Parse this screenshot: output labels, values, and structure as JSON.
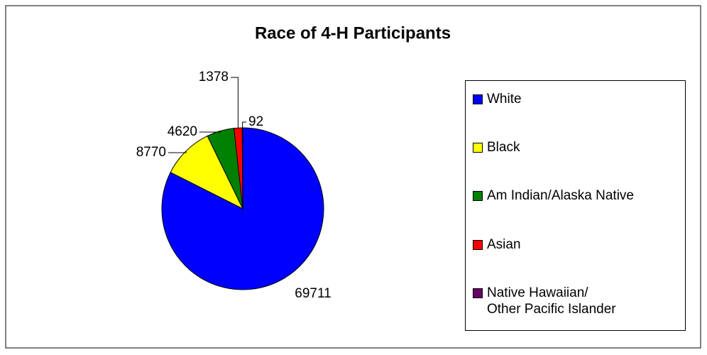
{
  "chart_data": {
    "type": "pie",
    "title": "Race of 4-H Participants",
    "categories": [
      "White",
      "Black",
      "Am Indian/Alaska Native",
      "Asian",
      "Native Hawaiian/\nOther Pacific Islander"
    ],
    "values": [
      69711,
      8770,
      4620,
      1378,
      92
    ],
    "colors": [
      "#0000ff",
      "#ffff00",
      "#008000",
      "#ff0000",
      "#660066"
    ],
    "legend": "right"
  }
}
